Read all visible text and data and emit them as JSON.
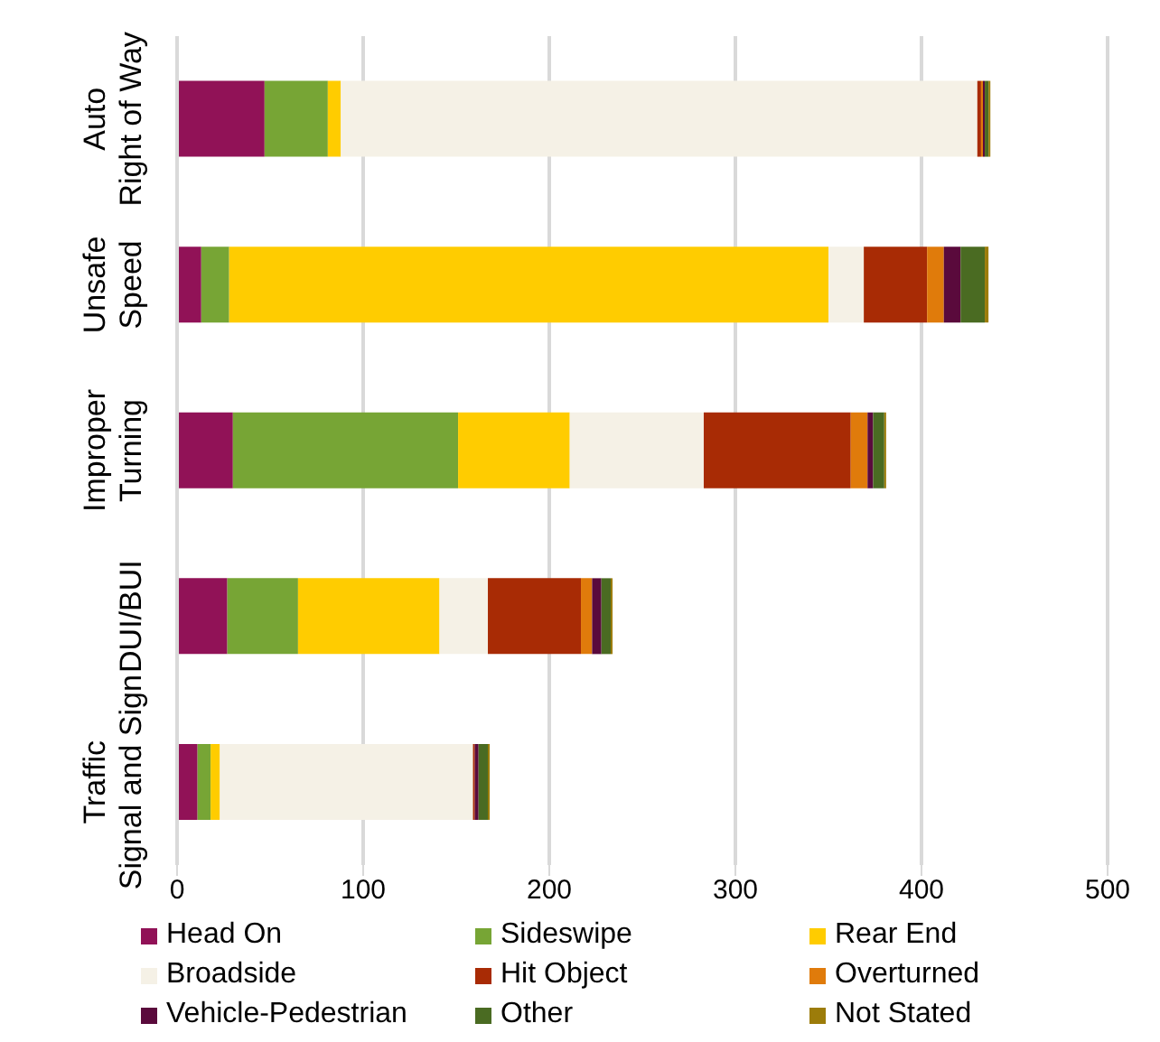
{
  "chart_data": {
    "type": "bar",
    "orientation": "horizontal",
    "stacked": true,
    "categories": [
      "Auto Right of Way",
      "Unsafe Speed",
      "Improper Turning",
      "DUI/BUI",
      "Traffic Signal and Sign"
    ],
    "series": [
      {
        "name": "Head On",
        "color": "#911257",
        "values": [
          47,
          13,
          30,
          27,
          11
        ]
      },
      {
        "name": "Sideswipe",
        "color": "#77a535",
        "values": [
          34,
          15,
          121,
          38,
          7
        ]
      },
      {
        "name": "Rear End",
        "color": "#ffcc00",
        "values": [
          7,
          322,
          60,
          76,
          5
        ]
      },
      {
        "name": "Broadside",
        "color": "#f5f1e6",
        "values": [
          342,
          19,
          72,
          26,
          136
        ]
      },
      {
        "name": "Hit Object",
        "color": "#a82b05",
        "values": [
          2,
          34,
          79,
          50,
          1
        ]
      },
      {
        "name": "Overturned",
        "color": "#e07b0b",
        "values": [
          1,
          9,
          9,
          6,
          0
        ]
      },
      {
        "name": "Vehicle-Pedestrian",
        "color": "#5a0a3c",
        "values": [
          1,
          9,
          3,
          5,
          2
        ]
      },
      {
        "name": "Other",
        "color": "#4a6b22",
        "values": [
          2,
          13,
          6,
          5,
          5
        ]
      },
      {
        "name": "Not Stated",
        "color": "#9c7c0a",
        "values": [
          1,
          2,
          1,
          1,
          1
        ]
      }
    ],
    "xlim": [
      0,
      500
    ],
    "xticks": [
      0,
      100,
      200,
      300,
      400,
      500
    ],
    "grid": "x",
    "legend": "bottom"
  }
}
